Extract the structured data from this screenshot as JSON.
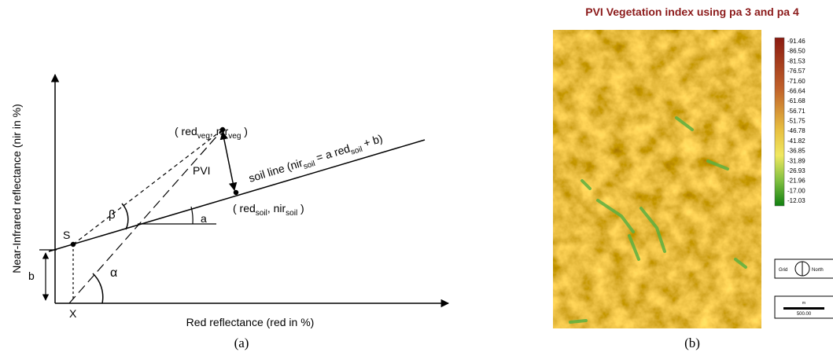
{
  "panel_a": {
    "y_axis_label": "Near-Infrared reflectance (nir in %)",
    "x_axis_label": "Red reflectance (red in %)",
    "vegetation_point": [
      "( red",
      "veg",
      ", nir",
      "veg",
      " )"
    ],
    "soil_point": [
      "( red",
      "soil",
      ", nir",
      "soil",
      " )"
    ],
    "soil_line_label": [
      "soil line (nir",
      "soil",
      " = a red",
      "soil",
      " + b)"
    ],
    "pvi_label": "PVI",
    "beta_label": "β",
    "alpha_label": "α",
    "slope_label": "a",
    "intercept_label": "b",
    "s_label": "S",
    "x_label": "X",
    "caption": "(a)"
  },
  "panel_b": {
    "title": "PVI Vegetation index using pa 3 and pa 4",
    "legend": [
      "-91.46",
      "-86.50",
      "-81.53",
      "-76.57",
      "-71.60",
      "-66.64",
      "-61.68",
      "-56.71",
      "-51.75",
      "-46.78",
      "-41.82",
      "-36.85",
      "-31.89",
      "-26.93",
      "-21.96",
      "-17.00",
      "-12.03"
    ],
    "compass_left": "Grid",
    "compass_right": "North",
    "scale_unit": "m",
    "scale_value": "500.00",
    "caption": "(b)"
  }
}
